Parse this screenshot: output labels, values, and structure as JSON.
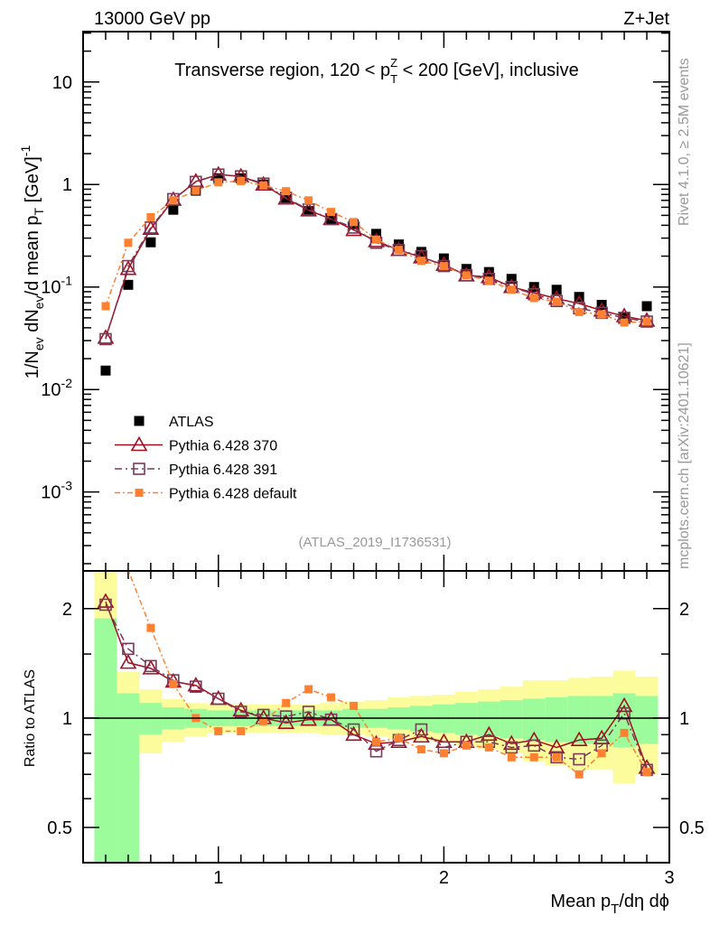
{
  "header": {
    "left": "13000 GeV pp",
    "right": "Z+Jet",
    "side_top": "Rivet 4.1.0, ≥ 2.5M events",
    "side_bottom": "mcplots.cern.ch [arXiv:2401.10621]",
    "analysis_id": "(ATLAS_2019_I1736531)"
  },
  "chart_data": {
    "type": "scatter",
    "title": {
      "pre": "Transverse region, 120 < p",
      "sub": "T",
      "sup": "Z",
      "post": " < 200 [GeV], inclusive"
    },
    "xlabel": {
      "pre": "Mean p",
      "sub": "T",
      "post": "/dη dϕ"
    },
    "ylabel": {
      "a": "1/N",
      "a_sub": "ev",
      "b": " dN",
      "b_sub": "ev",
      "c": "/d mean p",
      "c_sub": "T",
      "d": " [GeV]",
      "d_sup": "-1"
    },
    "ratio_ylabel": "Ratio to ATLAS",
    "xlim": [
      0.4,
      3.0
    ],
    "ylim": [
      0.00017,
      31
    ],
    "yscale": "log",
    "ratio_ylim": [
      0.4,
      2.54
    ],
    "x_ticks": [
      "1",
      "2",
      "3"
    ],
    "y_ticks": [
      {
        "v": 10,
        "base": "10",
        "exp": ""
      },
      {
        "v": 1,
        "base": "1",
        "exp": ""
      },
      {
        "v": 0.1,
        "base": "10",
        "exp": "-1"
      },
      {
        "v": 0.01,
        "base": "10",
        "exp": "-2"
      },
      {
        "v": 0.001,
        "base": "10",
        "exp": "-3"
      }
    ],
    "ratio_ticks": [
      "2",
      "1",
      "0.5"
    ],
    "legend_position": "lower-left",
    "x": [
      0.5,
      0.6,
      0.7,
      0.8,
      0.9,
      1.0,
      1.1,
      1.2,
      1.3,
      1.4,
      1.5,
      1.6,
      1.7,
      1.8,
      1.9,
      2.0,
      2.1,
      2.2,
      2.3,
      2.4,
      2.5,
      2.6,
      2.7,
      2.8,
      2.9
    ],
    "series": [
      {
        "name": "ATLAS",
        "color": "#000000",
        "marker": "filled-square",
        "values": [
          0.0153,
          0.105,
          0.273,
          0.567,
          0.87,
          1.15,
          1.15,
          1.0,
          0.72,
          0.55,
          0.46,
          0.41,
          0.33,
          0.26,
          0.22,
          0.19,
          0.15,
          0.14,
          0.12,
          0.1,
          0.094,
          0.08,
          0.067,
          0.05,
          0.065
        ]
      },
      {
        "name": "Pythia 6.428 370",
        "color": "#a01020",
        "marker": "open-triangle",
        "dash": "",
        "values": [
          0.032,
          0.15,
          0.37,
          0.71,
          1.07,
          1.25,
          1.2,
          1.0,
          0.73,
          0.56,
          0.46,
          0.36,
          0.28,
          0.23,
          0.195,
          0.165,
          0.13,
          0.125,
          0.1,
          0.088,
          0.077,
          0.069,
          0.059,
          0.052,
          0.047
        ],
        "ratio": [
          2.09,
          1.42,
          1.37,
          1.26,
          1.23,
          1.13,
          1.05,
          1.0,
          0.97,
          0.99,
          0.99,
          0.9,
          0.85,
          0.86,
          0.89,
          0.86,
          0.86,
          0.9,
          0.85,
          0.87,
          0.83,
          0.87,
          0.88,
          1.08,
          0.73
        ]
      },
      {
        "name": "Pythia 6.428 391",
        "color": "#7a3a5a",
        "marker": "open-square",
        "dash": "8,4,2,4",
        "values": [
          0.031,
          0.16,
          0.38,
          0.72,
          1.06,
          1.25,
          1.2,
          1.02,
          0.74,
          0.57,
          0.46,
          0.38,
          0.27,
          0.23,
          0.2,
          0.16,
          0.13,
          0.12,
          0.1,
          0.085,
          0.073,
          0.062,
          0.056,
          0.05,
          0.046
        ],
        "ratio": [
          2.05,
          1.55,
          1.39,
          1.27,
          1.22,
          1.13,
          1.04,
          1.02,
          1.01,
          1.04,
          0.99,
          0.93,
          0.81,
          0.87,
          0.93,
          0.83,
          0.86,
          0.86,
          0.83,
          0.84,
          0.78,
          0.77,
          0.84,
          1.03,
          0.72
        ]
      },
      {
        "name": "Pythia 6.428 default",
        "color": "#ff8030",
        "marker": "filled-small-square",
        "dash": "6,3,2,3",
        "values": [
          0.065,
          0.27,
          0.48,
          0.7,
          0.87,
          1.05,
          1.08,
          0.98,
          0.86,
          0.7,
          0.54,
          0.43,
          0.29,
          0.23,
          0.18,
          0.16,
          0.13,
          0.115,
          0.094,
          0.078,
          0.072,
          0.057,
          0.054,
          0.045,
          0.046
        ],
        "ratio": [
          4.2,
          2.55,
          1.77,
          1.24,
          1.0,
          0.92,
          0.92,
          0.98,
          1.1,
          1.2,
          1.14,
          1.08,
          0.86,
          0.88,
          0.82,
          0.8,
          0.84,
          0.83,
          0.78,
          0.78,
          0.78,
          0.7,
          0.8,
          0.91,
          0.71
        ]
      }
    ],
    "band_green": [
      [
        0.3,
        1.88
      ],
      [
        0.3,
        1.17
      ],
      [
        0.9,
        1.1
      ],
      [
        0.93,
        1.07
      ],
      [
        0.94,
        1.06
      ],
      [
        0.95,
        1.05
      ],
      [
        0.95,
        1.05
      ],
      [
        0.95,
        1.05
      ],
      [
        0.95,
        1.05
      ],
      [
        0.95,
        1.05
      ],
      [
        0.95,
        1.05
      ],
      [
        0.94,
        1.06
      ],
      [
        0.94,
        1.06
      ],
      [
        0.93,
        1.07
      ],
      [
        0.92,
        1.08
      ],
      [
        0.91,
        1.09
      ],
      [
        0.9,
        1.1
      ],
      [
        0.89,
        1.11
      ],
      [
        0.88,
        1.12
      ],
      [
        0.87,
        1.13
      ],
      [
        0.86,
        1.14
      ],
      [
        0.85,
        1.15
      ],
      [
        0.85,
        1.15
      ],
      [
        0.83,
        1.17
      ],
      [
        0.85,
        1.15
      ]
    ],
    "band_yellow": [
      [
        0.3,
        3.0
      ],
      [
        0.65,
        1.34
      ],
      [
        0.8,
        1.2
      ],
      [
        0.86,
        1.13
      ],
      [
        0.89,
        1.1
      ],
      [
        0.91,
        1.09
      ],
      [
        0.91,
        1.09
      ],
      [
        0.91,
        1.09
      ],
      [
        0.91,
        1.09
      ],
      [
        0.91,
        1.09
      ],
      [
        0.9,
        1.1
      ],
      [
        0.9,
        1.11
      ],
      [
        0.89,
        1.12
      ],
      [
        0.88,
        1.14
      ],
      [
        0.87,
        1.15
      ],
      [
        0.86,
        1.16
      ],
      [
        0.84,
        1.18
      ],
      [
        0.82,
        1.2
      ],
      [
        0.8,
        1.22
      ],
      [
        0.76,
        1.27
      ],
      [
        0.74,
        1.27
      ],
      [
        0.72,
        1.29
      ],
      [
        0.72,
        1.3
      ],
      [
        0.66,
        1.35
      ],
      [
        0.7,
        1.3
      ]
    ],
    "band_colors": {
      "green": "#9cfc9c",
      "yellow": "#fcfc9c"
    }
  }
}
